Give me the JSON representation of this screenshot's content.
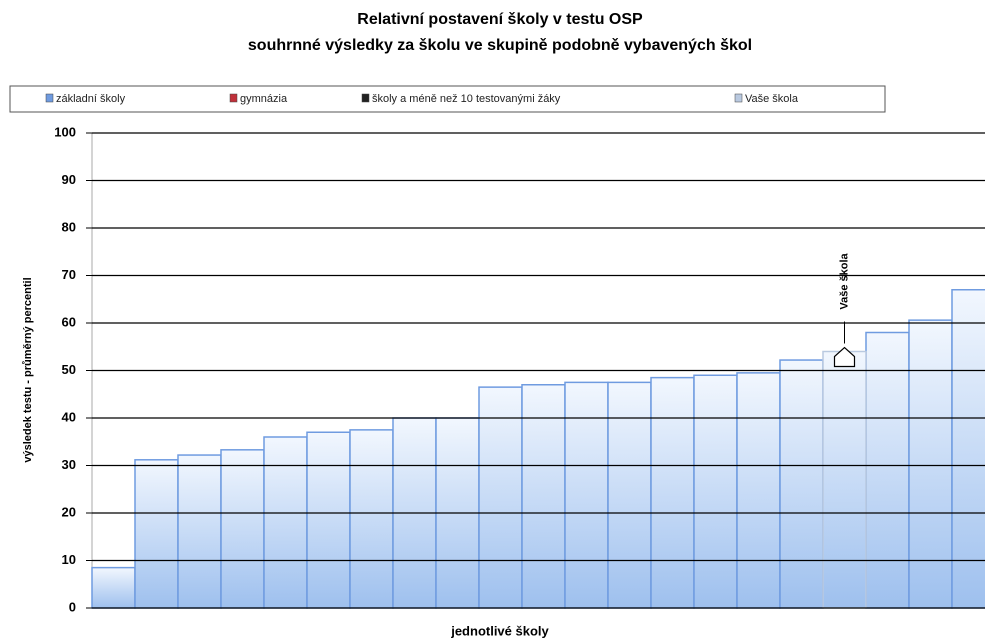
{
  "chart_data": {
    "type": "bar",
    "title": "Relativní postavení školy v testu OSP",
    "subtitle": "souhrnné výsledky za školu ve skupině podobně vybavených škol",
    "x_label": "jednotlivé školy",
    "y_label": "výsledek testu - průměrný percentil",
    "annotation": "Vaše škola",
    "categories": [
      null,
      null,
      null,
      null,
      null,
      null,
      null,
      null,
      null,
      null,
      null,
      null,
      null,
      null,
      null,
      null,
      null,
      null,
      null,
      null,
      null
    ],
    "series": [
      {
        "name": "základní školy",
        "color": "#6f9be0",
        "values": [
          8.5,
          31.2,
          32.2,
          33.3,
          36,
          37,
          37.5,
          40,
          40,
          46.5,
          47,
          47.5,
          47.5,
          48.5,
          49,
          49.5,
          52.2,
          null,
          58,
          60.6,
          67
        ]
      },
      {
        "name": "gymnázia",
        "color": "#c0303a",
        "values": [
          null,
          null,
          null,
          null,
          null,
          null,
          null,
          null,
          null,
          null,
          null,
          null,
          null,
          null,
          null,
          null,
          null,
          null,
          null,
          null,
          null
        ]
      },
      {
        "name": "školy a méně než 10 testovanými žáky",
        "color": "#222222",
        "values": [
          null,
          null,
          null,
          null,
          null,
          null,
          null,
          null,
          null,
          null,
          null,
          null,
          null,
          null,
          null,
          null,
          null,
          null,
          null,
          null,
          null
        ]
      },
      {
        "name": "Vaše škola",
        "color": "#b9c9e0",
        "values": [
          null,
          null,
          null,
          null,
          null,
          null,
          null,
          null,
          null,
          null,
          null,
          null,
          null,
          null,
          null,
          null,
          null,
          54,
          null,
          null,
          null
        ]
      }
    ],
    "ylim": [
      0,
      100
    ],
    "yticks": [
      0,
      10,
      20,
      30,
      40,
      50,
      60,
      70,
      80,
      90,
      100
    ],
    "grid": true
  }
}
